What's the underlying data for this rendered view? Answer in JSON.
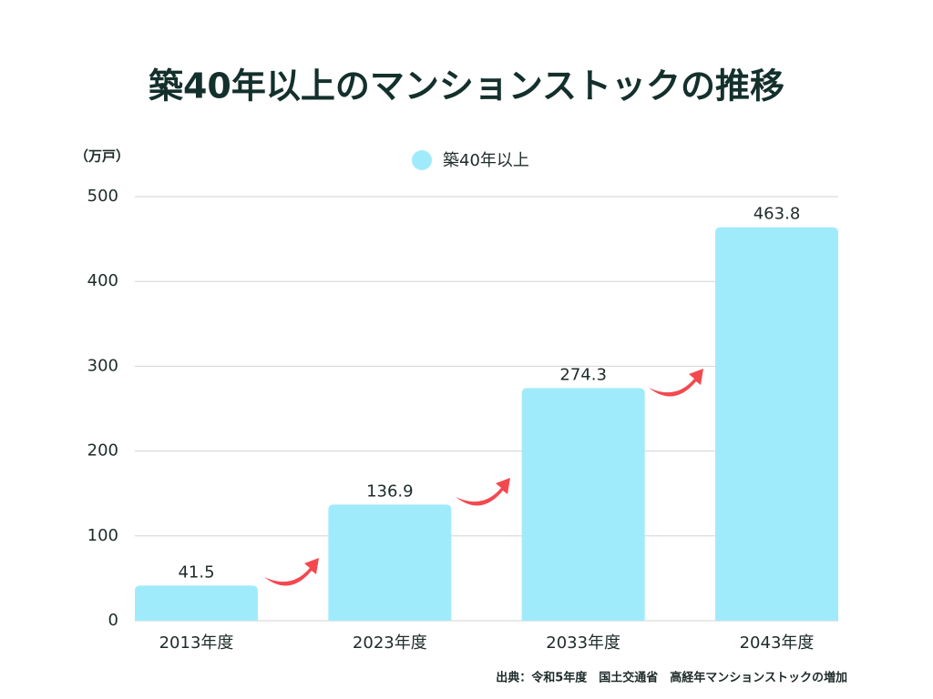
{
  "chart_data": {
    "type": "bar",
    "title": "築40年以上のマンションストックの推移",
    "y_unit": "（万戸）",
    "source": "出典：令和5年度　国土交通省　高経年マンションストックの増加",
    "categories": [
      "2013年度",
      "2023年度",
      "2033年度",
      "2043年度"
    ],
    "series": [
      {
        "name": "築40年以上",
        "color": "#a0ebfb",
        "values": [
          41.5,
          136.9,
          274.3,
          463.8
        ]
      }
    ],
    "ylim": [
      0,
      500
    ],
    "yticks": [
      0,
      100,
      200,
      300,
      400,
      500
    ],
    "grid": true,
    "legend": "top"
  }
}
